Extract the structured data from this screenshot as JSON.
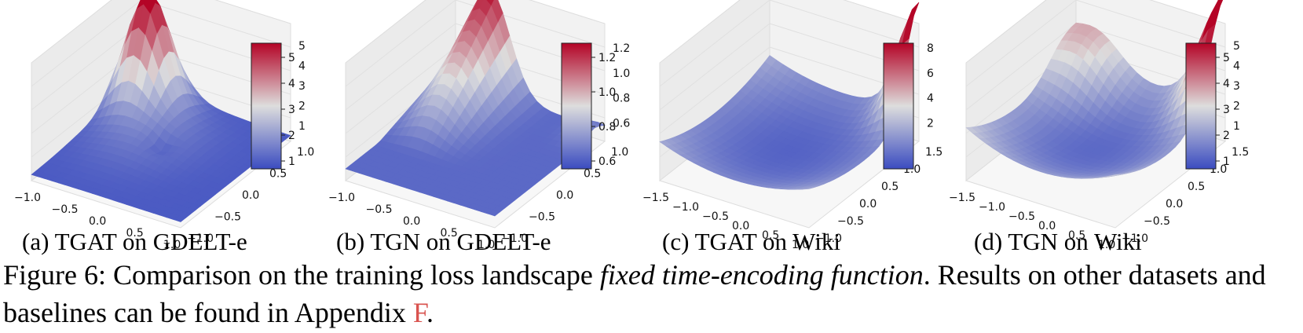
{
  "figure": {
    "caption_lead": "Figure 6: Comparison on the training loss landscape ",
    "caption_emph": "fixed time-encoding function",
    "caption_tail": ". Results on other datasets and baselines can be found in Appendix ",
    "caption_ref": "F",
    "caption_end": "."
  },
  "colors": {
    "low": "#3b4cc0",
    "mid": "#dddddd",
    "high": "#b40426",
    "ref": "#d9534f"
  },
  "panels": [
    {
      "subcaption": "(a) TGAT on GDELT-e",
      "x_ticks": [
        "−1.0",
        "−0.5",
        "0.0",
        "0.5",
        "1.0"
      ],
      "y_ticks": [
        "−1.0",
        "−0.5",
        "0.0",
        "0.5",
        "1.0"
      ],
      "z_ticks": [
        "1",
        "2",
        "3",
        "4",
        "5"
      ],
      "colorbar_ticks": [
        "1",
        "2",
        "3",
        "4",
        "5"
      ],
      "surface": "peak-back-left"
    },
    {
      "subcaption": "(b) TGN on GDELT-e",
      "x_ticks": [
        "−1.0",
        "−0.5",
        "0.0",
        "0.5",
        "1.0"
      ],
      "y_ticks": [
        "−1.0",
        "−0.5",
        "0.0",
        "0.5",
        "1.0"
      ],
      "z_ticks": [
        "0.6",
        "0.8",
        "1.0",
        "1.2"
      ],
      "colorbar_ticks": [
        "0.6",
        "0.8",
        "1.0",
        "1.2"
      ],
      "surface": "ridge-back-left"
    },
    {
      "subcaption": "(c) TGAT on Wiki",
      "x_ticks": [
        "−1.5",
        "−1.0",
        "−0.5",
        "0.0",
        "0.5",
        "1.0"
      ],
      "y_ticks": [
        "−1.0",
        "−0.5",
        "0.0",
        "0.5",
        "1.0",
        "1.5"
      ],
      "z_ticks": [
        "2",
        "4",
        "6",
        "8"
      ],
      "colorbar_ticks": [],
      "surface": "corner-right"
    },
    {
      "subcaption": "(d) TGN on Wiki",
      "x_ticks": [
        "−1.5",
        "−1.0",
        "−0.5",
        "0.0",
        "0.5",
        "1.0"
      ],
      "y_ticks": [
        "−1.0",
        "−0.5",
        "0.0",
        "0.5",
        "1.0",
        "1.5"
      ],
      "z_ticks": [
        "1",
        "2",
        "3",
        "4",
        "5"
      ],
      "colorbar_ticks": [
        "1",
        "2",
        "3",
        "4",
        "5"
      ],
      "surface": "bowl-right-rise"
    }
  ]
}
